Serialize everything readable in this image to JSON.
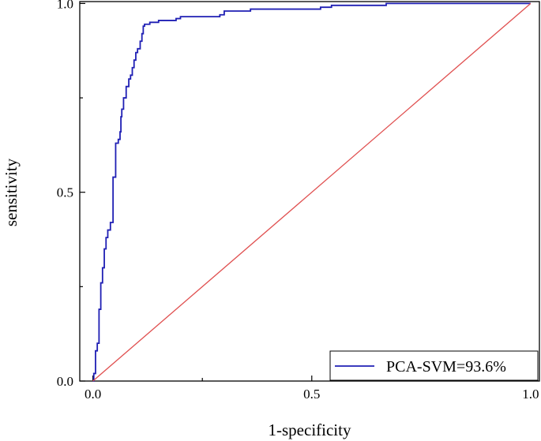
{
  "chart_data": {
    "type": "line",
    "xlabel": "1-specificity",
    "ylabel": "sensitivity",
    "xlim": [
      -0.03,
      1.02
    ],
    "ylim": [
      0,
      1.005
    ],
    "x_ticks": [
      {
        "value": 0.0,
        "label": "0.0"
      },
      {
        "value": 0.5,
        "label": "0.5"
      },
      {
        "value": 1.0,
        "label": "1.0"
      }
    ],
    "y_ticks": [
      {
        "value": 0.0,
        "label": "0.0"
      },
      {
        "value": 0.5,
        "label": "0.5"
      },
      {
        "value": 1.0,
        "label": "1.0"
      }
    ],
    "grid": false,
    "legend_position": "bottom-right",
    "series": [
      {
        "name": "PCA-SVM=93.6%",
        "color": "#1f1fb4",
        "x": [
          0.0,
          0.002,
          0.002,
          0.006,
          0.006,
          0.01,
          0.01,
          0.014,
          0.014,
          0.018,
          0.018,
          0.022,
          0.022,
          0.026,
          0.026,
          0.03,
          0.03,
          0.034,
          0.034,
          0.04,
          0.04,
          0.046,
          0.046,
          0.052,
          0.052,
          0.058,
          0.058,
          0.062,
          0.062,
          0.064,
          0.064,
          0.066,
          0.066,
          0.07,
          0.07,
          0.076,
          0.076,
          0.082,
          0.082,
          0.086,
          0.086,
          0.09,
          0.09,
          0.094,
          0.094,
          0.098,
          0.098,
          0.102,
          0.102,
          0.108,
          0.108,
          0.112,
          0.112,
          0.115,
          0.115,
          0.118,
          0.118,
          0.125,
          0.125,
          0.13,
          0.13,
          0.15,
          0.15,
          0.18,
          0.18,
          0.19,
          0.19,
          0.2,
          0.2,
          0.25,
          0.25,
          0.29,
          0.29,
          0.3,
          0.3,
          0.36,
          0.36,
          0.52,
          0.52,
          0.545,
          0.545,
          0.67,
          0.67,
          1.0
        ],
        "y": [
          0.0,
          0.0,
          0.02,
          0.02,
          0.08,
          0.08,
          0.1,
          0.1,
          0.19,
          0.19,
          0.26,
          0.26,
          0.3,
          0.3,
          0.35,
          0.35,
          0.38,
          0.38,
          0.4,
          0.4,
          0.42,
          0.42,
          0.54,
          0.54,
          0.63,
          0.63,
          0.64,
          0.64,
          0.66,
          0.66,
          0.7,
          0.7,
          0.72,
          0.72,
          0.75,
          0.75,
          0.78,
          0.78,
          0.8,
          0.8,
          0.81,
          0.81,
          0.83,
          0.83,
          0.85,
          0.85,
          0.87,
          0.87,
          0.88,
          0.88,
          0.9,
          0.9,
          0.92,
          0.92,
          0.94,
          0.94,
          0.945,
          0.945,
          0.945,
          0.945,
          0.95,
          0.95,
          0.955,
          0.955,
          0.955,
          0.955,
          0.96,
          0.96,
          0.965,
          0.965,
          0.965,
          0.965,
          0.97,
          0.97,
          0.98,
          0.98,
          0.985,
          0.985,
          0.99,
          0.99,
          0.995,
          0.995,
          1.0,
          1.0
        ]
      },
      {
        "color": "#e05050",
        "x": [
          0.0,
          1.0
        ],
        "y": [
          0.0,
          1.0
        ]
      }
    ]
  }
}
